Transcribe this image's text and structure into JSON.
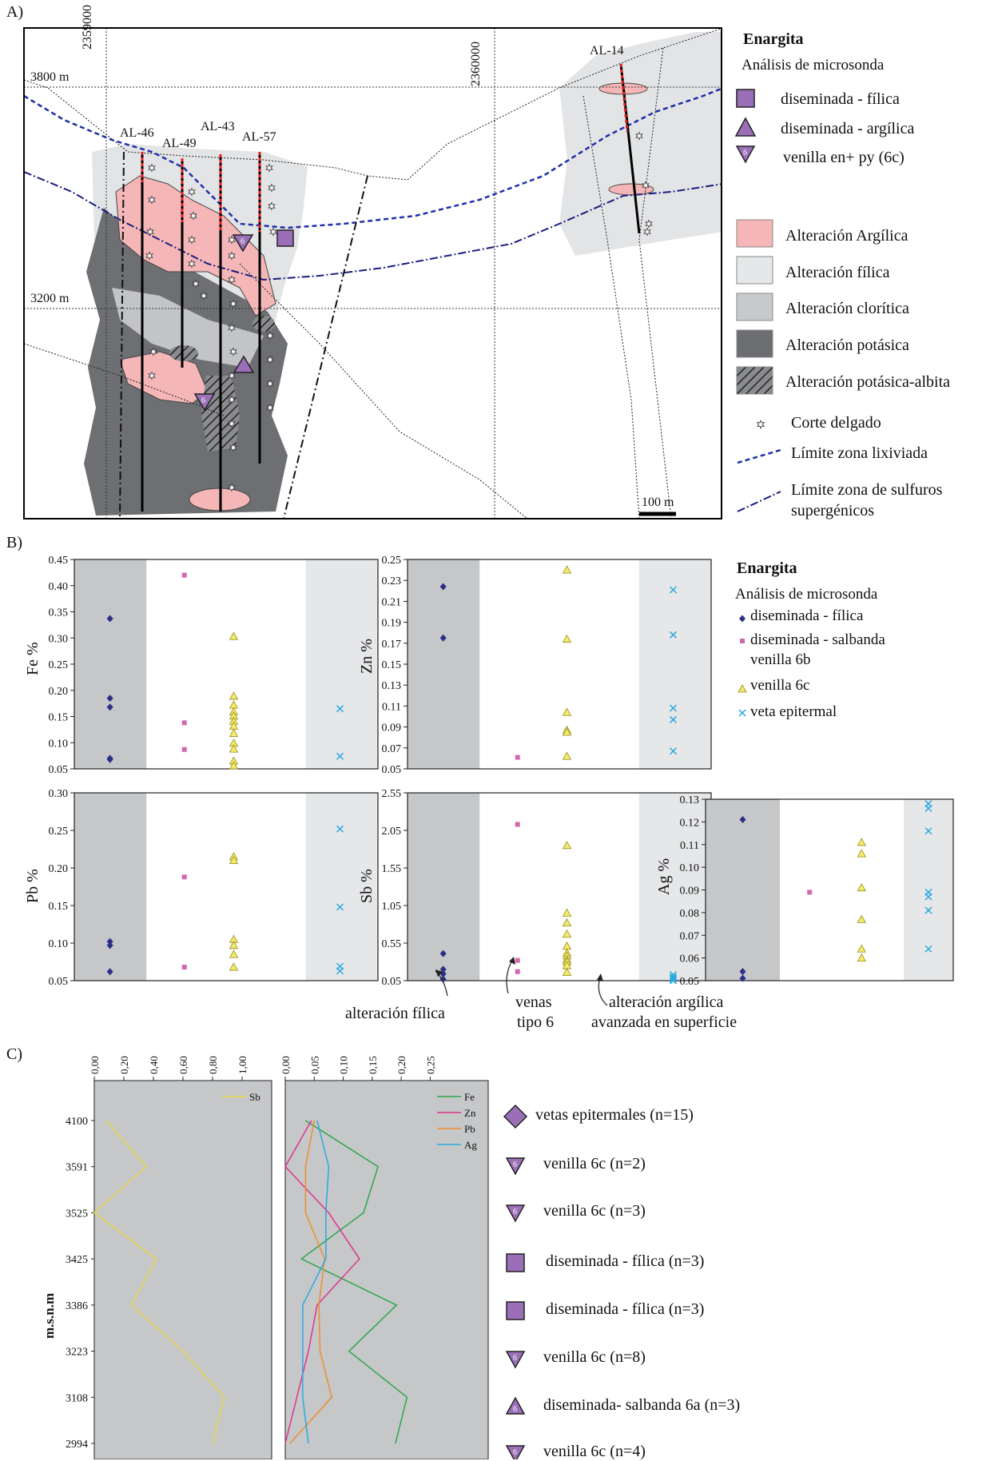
{
  "panel_labels": [
    "A)",
    "B)",
    "C)"
  ],
  "colors": {
    "argilica": "#f4b6b6",
    "filica": "#e6e7e9",
    "cloritica": "#c8c9cc",
    "potasica": "#6d6e71",
    "purple": "#9b6fb8",
    "fe_marker": "#2b2f87",
    "salbanda_marker": "#d06aae",
    "venilla_marker": "#f2ea6b",
    "veta_marker": "#2aa9df",
    "lix_line": "#1f2fa8",
    "sulf_line": "#1b1d80",
    "line_fe": "#2ba84a",
    "line_zn": "#e0338e",
    "line_pb": "#f28c28",
    "line_ag": "#29aae1",
    "line_sb": "#e8d84a",
    "panel_gray": "#c6c7c9",
    "panel_light": "#e6e7e9"
  },
  "map": {
    "elevations": [
      "3800 m",
      "3200 m"
    ],
    "coords": [
      "2359000",
      "2360000"
    ],
    "holes": [
      "AL-46",
      "AL-49",
      "AL-43",
      "AL-57",
      "AL-14"
    ],
    "scale_label": "100 m"
  },
  "legend_a": {
    "title": "Enargita",
    "subtitle": "Análisis de microsonda",
    "items": [
      {
        "label": "diseminada - fílica",
        "icon": "square-icon"
      },
      {
        "label": "diseminada - argílica",
        "icon": "triangle-up-icon"
      },
      {
        "label": "venilla en+ py (6c)",
        "icon": "triangle-down-6-icon"
      }
    ],
    "alteration": [
      {
        "label": "Alteración Argílica",
        "icon": "pink-swatch"
      },
      {
        "label": "Alteración fílica",
        "icon": "light-gray-swatch"
      },
      {
        "label": "Alteración clorítica",
        "icon": "mid-gray-swatch"
      },
      {
        "label": "Alteración potásica",
        "icon": "dark-gray-swatch"
      },
      {
        "label": "Alteración potásica-albita",
        "icon": "hatched-swatch"
      }
    ],
    "symbols": [
      {
        "label": "Corte delgado",
        "icon": "star-icon"
      },
      {
        "label": "Límite zona lixiviada",
        "icon": "dashed-line-icon"
      },
      {
        "label": "Límite zona de sulfuros",
        "label2": "supergénicos",
        "icon": "dash-dot-line-icon"
      }
    ]
  },
  "legend_b": {
    "title": "Enargita",
    "subtitle": "Análisis de microsonda",
    "items": [
      {
        "label": "diseminada - fílica",
        "marker": "diamond"
      },
      {
        "label": "diseminada - salbanda",
        "label2": "venilla 6b",
        "marker": "square"
      },
      {
        "label": "venilla 6c",
        "marker": "triangle"
      },
      {
        "label": "veta epitermal",
        "marker": "cross"
      }
    ]
  },
  "annotations_b": [
    {
      "label": "alteración fílica"
    },
    {
      "label": "venas",
      "label2": "tipo 6"
    },
    {
      "label": "alteración argílica",
      "label2": "avanzada en superficie"
    }
  ],
  "legend_c": [
    {
      "label": "vetas epitermales (n=15)",
      "icon": "diamond-icon"
    },
    {
      "label": "venilla 6c (n=2)",
      "icon": "triangle-down-6-icon"
    },
    {
      "label": "venilla 6c (n=3)",
      "icon": "triangle-down-6-icon"
    },
    {
      "label": "diseminada - fílica (n=3)",
      "icon": "square-icon"
    },
    {
      "label": "diseminada - fílica (n=3)",
      "icon": "square-icon"
    },
    {
      "label": "venilla 6c (n=8)",
      "icon": "triangle-down-6-icon"
    },
    {
      "label": "diseminada- salbanda 6a (n=3)",
      "icon": "triangle-up-6-icon"
    },
    {
      "label": "venilla 6c (n=4)",
      "icon": "triangle-down-6-icon"
    }
  ],
  "chart_data": [
    {
      "type": "scatter",
      "ylabel": "Fe %",
      "ylim": [
        0.05,
        0.45
      ],
      "yticks": [
        "0.05",
        "0.10",
        "0.15",
        "0.20",
        "0.25",
        "0.30",
        "0.35",
        "0.40",
        "0.45"
      ],
      "series": [
        {
          "name": "diseminada - fílica",
          "values": [
            0.337,
            0.185,
            0.168,
            0.07,
            0.068
          ]
        },
        {
          "name": "diseminada - salbanda venilla 6b",
          "values": [
            0.42,
            0.138,
            0.087
          ]
        },
        {
          "name": "venilla 6c",
          "values": [
            0.303,
            0.189,
            0.172,
            0.159,
            0.151,
            0.141,
            0.132,
            0.118,
            0.099,
            0.088,
            0.065,
            0.056
          ]
        },
        {
          "name": "veta epitermal",
          "values": [
            0.165,
            0.074
          ]
        }
      ]
    },
    {
      "type": "scatter",
      "ylabel": "Zn %",
      "ylim": [
        0.05,
        0.25
      ],
      "yticks": [
        "0.05",
        "0.07",
        "0.09",
        "0.11",
        "0.13",
        "0.15",
        "0.17",
        "0.19",
        "0.21",
        "0.23",
        "0.25"
      ],
      "series": [
        {
          "name": "diseminada - fílica",
          "values": [
            0.224,
            0.175
          ]
        },
        {
          "name": "diseminada - salbanda venilla 6b",
          "values": [
            0.061
          ]
        },
        {
          "name": "venilla 6c",
          "values": [
            0.24,
            0.174,
            0.104,
            0.087,
            0.085,
            0.062
          ]
        },
        {
          "name": "veta epitermal",
          "values": [
            0.221,
            0.178,
            0.108,
            0.097,
            0.067
          ]
        }
      ]
    },
    {
      "type": "scatter",
      "ylabel": "Pb %",
      "ylim": [
        0.05,
        0.3
      ],
      "yticks": [
        "0.05",
        "0.10",
        "0.15",
        "0.20",
        "0.25",
        "0.30"
      ],
      "series": [
        {
          "name": "diseminada - fílica",
          "values": [
            0.102,
            0.097,
            0.062
          ]
        },
        {
          "name": "diseminada - salbanda venilla 6b",
          "values": [
            0.188,
            0.068
          ]
        },
        {
          "name": "venilla 6c",
          "values": [
            0.215,
            0.21,
            0.105,
            0.097,
            0.085,
            0.068
          ]
        },
        {
          "name": "veta epitermal",
          "values": [
            0.252,
            0.148,
            0.069,
            0.063
          ]
        }
      ]
    },
    {
      "type": "scatter",
      "ylabel": "Sb %",
      "ylim": [
        0.05,
        2.55
      ],
      "yticks": [
        "0.05",
        "0.55",
        "1.05",
        "1.55",
        "2.05",
        "2.55"
      ],
      "series": [
        {
          "name": "diseminada - fílica",
          "values": [
            0.41,
            0.2,
            0.14,
            0.07
          ]
        },
        {
          "name": "diseminada - salbanda venilla 6b",
          "values": [
            2.13,
            0.32,
            0.17
          ]
        },
        {
          "name": "venilla 6c",
          "values": [
            1.85,
            0.95,
            0.82,
            0.67,
            0.51,
            0.42,
            0.38,
            0.33,
            0.3,
            0.25,
            0.16
          ]
        },
        {
          "name": "veta epitermal",
          "values": [
            0.13,
            0.1,
            0.08,
            0.06,
            0.05
          ]
        }
      ]
    },
    {
      "type": "scatter",
      "ylabel": "Ag %",
      "ylim": [
        0.05,
        0.13
      ],
      "yticks": [
        "0.05",
        "0.06",
        "0.07",
        "0.08",
        "0.09",
        "0.10",
        "0.11",
        "0.12",
        "0.13"
      ],
      "series": [
        {
          "name": "diseminada - fílica",
          "values": [
            0.121,
            0.054,
            0.051
          ]
        },
        {
          "name": "diseminada - salbanda venilla 6b",
          "values": [
            0.089
          ]
        },
        {
          "name": "venilla 6c",
          "values": [
            0.111,
            0.106,
            0.091,
            0.077,
            0.064,
            0.06
          ]
        },
        {
          "name": "veta epitermal",
          "values": [
            0.128,
            0.126,
            0.116,
            0.089,
            0.087,
            0.081,
            0.064
          ]
        }
      ]
    },
    {
      "type": "line",
      "ylabel": "m.s.n.m",
      "categories": [
        "4100",
        "3591",
        "3525",
        "3425",
        "3386",
        "3223",
        "3108",
        "2994"
      ],
      "xticks": [
        "0,00",
        "0,20",
        "0,40",
        "0,60",
        "0,80",
        "1,00"
      ],
      "xlim": [
        0,
        1.2
      ],
      "series": [
        {
          "name": "Sb",
          "values": [
            0.08,
            0.35,
            0.0,
            0.42,
            0.25,
            0.6,
            0.88,
            0.8
          ]
        }
      ]
    },
    {
      "type": "line",
      "ylabel": "m.s.n.m",
      "categories": [
        "4100",
        "3591",
        "3525",
        "3425",
        "3386",
        "3223",
        "3108",
        "2994"
      ],
      "xticks": [
        "0,00",
        "0,05",
        "0,10",
        "0,15",
        "0,20",
        "0,25"
      ],
      "xlim": [
        0,
        0.35
      ],
      "series": [
        {
          "name": "Fe",
          "values": [
            0.035,
            0.16,
            0.135,
            0.028,
            0.192,
            0.11,
            0.21,
            0.19
          ]
        },
        {
          "name": "Zn",
          "values": [
            0.045,
            0.0,
            0.075,
            0.128,
            0.055,
            0.04,
            0.02,
            0.0
          ]
        },
        {
          "name": "Pb",
          "values": [
            0.05,
            0.035,
            0.035,
            0.068,
            0.058,
            0.06,
            0.08,
            0.008
          ]
        },
        {
          "name": "Ag",
          "values": [
            0.055,
            0.075,
            0.07,
            0.07,
            0.03,
            0.03,
            0.03,
            0.04
          ]
        }
      ]
    }
  ]
}
